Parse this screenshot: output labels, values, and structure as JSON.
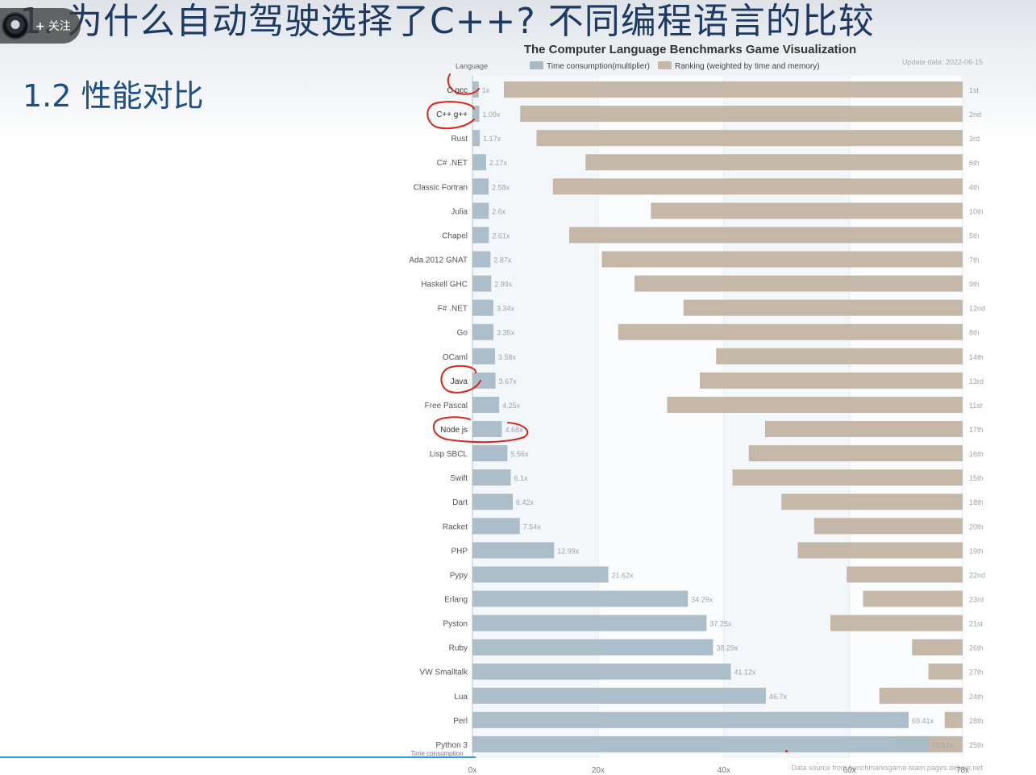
{
  "slide": {
    "title": "1. 为什么自动驾驶选择了C++? 不同编程语言的比较",
    "section": "1.2 性能对比"
  },
  "overlay": {
    "follow_label": "关注",
    "follow_plus": "+"
  },
  "colors": {
    "time_bar": "#a8bac6",
    "rank_bar": "#c6b8a8",
    "title_text": "#1d3a63",
    "heading_text": "#1d4e86",
    "annotation_red": "#d8271c",
    "bottom_line": "#2a9bd6"
  },
  "chart_data": {
    "type": "bar",
    "orientation": "horizontal",
    "title": "The Computer Language Benchmarks Game Visualization",
    "update_date": "Update date: 2022-06-15",
    "category_axis_label": "Language",
    "x_axis_label": "Time consumption",
    "source": "Data source from benchmarksgame-team.pages.debian.net",
    "legend": {
      "placement": "top",
      "items": [
        "Time consumption(multiplier)",
        "Ranking (weighted by time and memory)"
      ]
    },
    "xlim": [
      0,
      78
    ],
    "x_ticks": [
      "0x",
      "20x",
      "40x",
      "60x",
      "78x"
    ],
    "x_tick_values": [
      0,
      20,
      40,
      60,
      78
    ],
    "categories": [
      "C gcc",
      "C++ g++",
      "Rust",
      "C# .NET",
      "Classic Fortran",
      "Julia",
      "Chapel",
      "Ada 2012 GNAT",
      "Haskell GHC",
      "F# .NET",
      "Go",
      "OCaml",
      "Java",
      "Free Pascal",
      "Node js",
      "Lisp SBCL",
      "Swift",
      "Dart",
      "Racket",
      "PHP",
      "Pypy",
      "Erlang",
      "Pyston",
      "Ruby",
      "VW Smalltalk",
      "Lua",
      "Perl",
      "Python 3"
    ],
    "series": [
      {
        "name": "Time consumption(multiplier)",
        "values": [
          1,
          1.09,
          1.17,
          2.17,
          2.58,
          2.6,
          2.61,
          2.87,
          2.99,
          3.34,
          3.35,
          3.58,
          3.67,
          4.25,
          4.68,
          5.56,
          6.1,
          6.42,
          7.54,
          12.99,
          21.62,
          34.29,
          37.25,
          38.29,
          41.12,
          46.7,
          69.41,
          72.51
        ],
        "labels": [
          "1x",
          "1.09x",
          "1.17x",
          "2.17x",
          "2.58x",
          "2.6x",
          "2.61x",
          "2.87x",
          "2.99x",
          "3.34x",
          "3.35x",
          "3.58x",
          "3.67x",
          "4.25x",
          "4.68x",
          "5.56x",
          "6.1x",
          "6.42x",
          "7.54x",
          "12.99x",
          "21.62x",
          "34.29x",
          "37.25x",
          "38.29x",
          "41.12x",
          "46.7x",
          "69.41x",
          "72.51x"
        ]
      },
      {
        "name": "Ranking (weighted by time and memory)",
        "values": [
          1,
          2,
          3,
          6,
          4,
          10,
          5,
          7,
          9,
          12,
          8,
          14,
          13,
          11,
          17,
          16,
          15,
          18,
          20,
          19,
          22,
          23,
          21,
          26,
          27,
          24,
          28,
          25
        ],
        "labels": [
          "1st",
          "2nd",
          "3rd",
          "6th",
          "4th",
          "10th",
          "5th",
          "7th",
          "9th",
          "12nd",
          "8th",
          "14th",
          "13rd",
          "11st",
          "17th",
          "16th",
          "15th",
          "18th",
          "20th",
          "19th",
          "22nd",
          "23rd",
          "21st",
          "26th",
          "27th",
          "24th",
          "28th",
          "25th"
        ]
      }
    ],
    "grid": true,
    "highlighted_categories": [
      "C gcc",
      "C++ g++",
      "Java",
      "Node js"
    ]
  }
}
